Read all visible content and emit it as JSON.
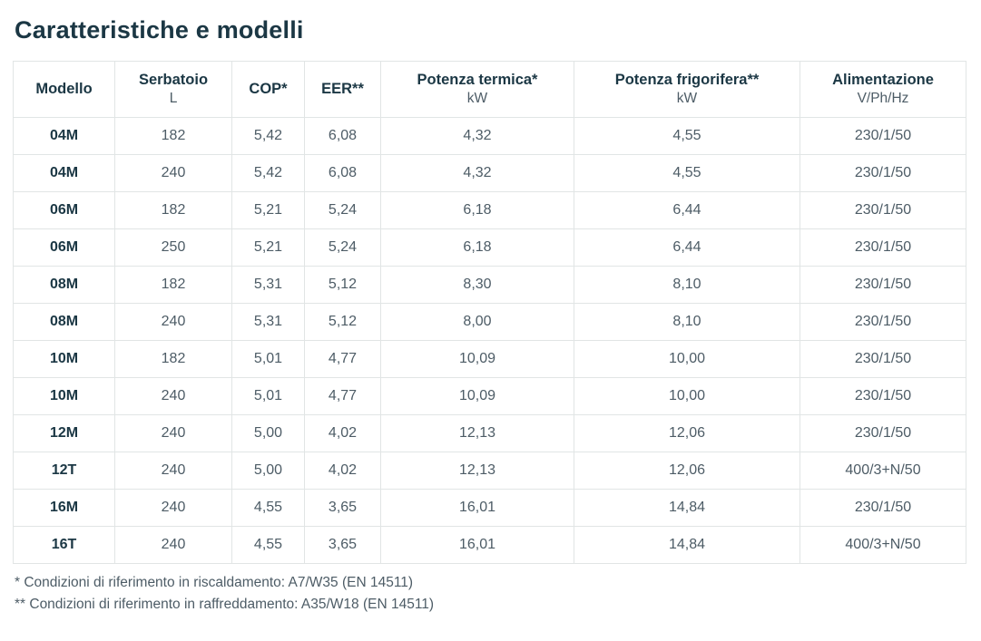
{
  "page": {
    "title": "Caratteristiche e modelli"
  },
  "colors": {
    "heading_text": "#1b3744",
    "body_text": "#4d5c66",
    "table_border": "#e1e5e5",
    "background": "#ffffff"
  },
  "table": {
    "columns": [
      {
        "label": "Modello",
        "unit": ""
      },
      {
        "label": "Serbatoio",
        "unit": "L"
      },
      {
        "label": "COP*",
        "unit": ""
      },
      {
        "label": "EER**",
        "unit": ""
      },
      {
        "label": "Potenza termica*",
        "unit": "kW"
      },
      {
        "label": "Potenza frigorifera**",
        "unit": "kW"
      },
      {
        "label": "Alimentazione",
        "unit": "V/Ph/Hz"
      }
    ],
    "rows": [
      [
        "04M",
        "182",
        "5,42",
        "6,08",
        "4,32",
        "4,55",
        "230/1/50"
      ],
      [
        "04M",
        "240",
        "5,42",
        "6,08",
        "4,32",
        "4,55",
        "230/1/50"
      ],
      [
        "06M",
        "182",
        "5,21",
        "5,24",
        "6,18",
        "6,44",
        "230/1/50"
      ],
      [
        "06M",
        "250",
        "5,21",
        "5,24",
        "6,18",
        "6,44",
        "230/1/50"
      ],
      [
        "08M",
        "182",
        "5,31",
        "5,12",
        "8,30",
        "8,10",
        "230/1/50"
      ],
      [
        "08M",
        "240",
        "5,31",
        "5,12",
        "8,00",
        "8,10",
        "230/1/50"
      ],
      [
        "10M",
        "182",
        "5,01",
        "4,77",
        "10,09",
        "10,00",
        "230/1/50"
      ],
      [
        "10M",
        "240",
        "5,01",
        "4,77",
        "10,09",
        "10,00",
        "230/1/50"
      ],
      [
        "12M",
        "240",
        "5,00",
        "4,02",
        "12,13",
        "12,06",
        "230/1/50"
      ],
      [
        "12T",
        "240",
        "5,00",
        "4,02",
        "12,13",
        "12,06",
        "400/3+N/50"
      ],
      [
        "16M",
        "240",
        "4,55",
        "3,65",
        "16,01",
        "14,84",
        "230/1/50"
      ],
      [
        "16T",
        "240",
        "4,55",
        "3,65",
        "16,01",
        "14,84",
        "400/3+N/50"
      ]
    ]
  },
  "footnotes": [
    "* Condizioni di riferimento in riscaldamento: A7/W35 (EN 14511)",
    "** Condizioni di riferimento in raffreddamento: A35/W18 (EN 14511)"
  ]
}
